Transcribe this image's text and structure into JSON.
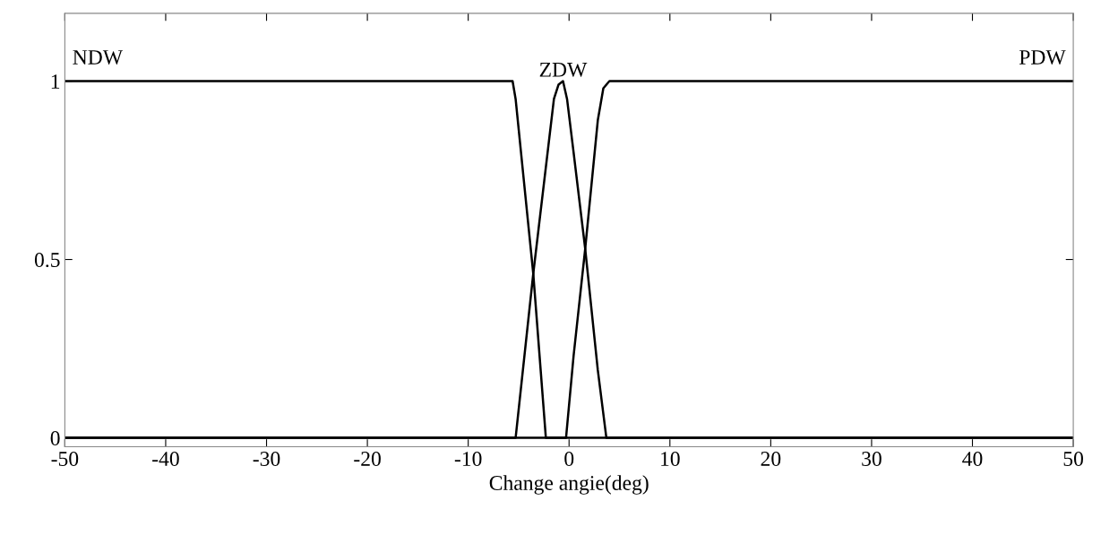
{
  "chart_data": {
    "type": "line",
    "xlabel": "Change angie(deg)",
    "xlim": [
      -50,
      50
    ],
    "xticks": [
      -50,
      -40,
      -30,
      -20,
      -10,
      0,
      10,
      20,
      30,
      40,
      50
    ],
    "ylim": [
      -0.025,
      1.19
    ],
    "yticks": [
      0,
      0.5,
      1
    ],
    "grid": false,
    "legend": false,
    "marker": "none",
    "line_style": "solid",
    "series": [
      {
        "name": "NDW",
        "color": "#000000",
        "x": [
          -50,
          -5.6,
          -5.3,
          -3.55,
          -2.3,
          50
        ],
        "values": [
          1,
          1,
          0.95,
          0.46,
          0,
          0
        ]
      },
      {
        "name": "ZDW",
        "color": "#000000",
        "x": [
          -50,
          -5.3,
          -3.55,
          -1.5,
          -1.05,
          -0.6,
          -0.2,
          0.45,
          1.6,
          2.85,
          3.7,
          50
        ],
        "values": [
          0,
          0,
          0.46,
          0.95,
          0.99,
          1,
          0.95,
          0.8,
          0.53,
          0.19,
          0,
          0
        ]
      },
      {
        "name": "PDW",
        "color": "#000000",
        "x": [
          -50,
          -0.3,
          0.45,
          1.6,
          2.85,
          3.4,
          4.0,
          50
        ],
        "values": [
          0,
          0,
          0.23,
          0.53,
          0.89,
          0.98,
          1,
          1
        ]
      }
    ]
  }
}
